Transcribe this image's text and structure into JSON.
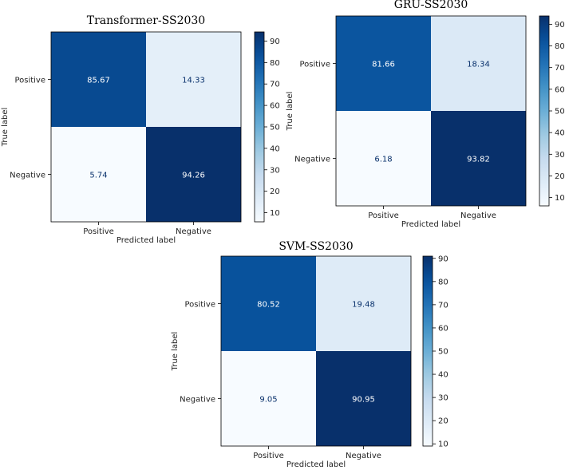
{
  "chart_data": [
    {
      "type": "heatmap",
      "title": "Transformer-SS2030",
      "row_labels": [
        "Positive",
        "Negative"
      ],
      "col_labels": [
        "Positive",
        "Negative"
      ],
      "values": [
        [
          85.67,
          14.33
        ],
        [
          5.74,
          94.26
        ]
      ],
      "xlabel": "Predicted label",
      "ylabel": "True label",
      "colorbar": {
        "range": [
          5.74,
          94.26
        ],
        "ticks": [
          10,
          20,
          30,
          40,
          50,
          60,
          70,
          80,
          90
        ]
      },
      "cmap": "Blues"
    },
    {
      "type": "heatmap",
      "title": "GRU-SS2030",
      "row_labels": [
        "Positive",
        "Negative"
      ],
      "col_labels": [
        "Positive",
        "Negative"
      ],
      "values": [
        [
          81.66,
          18.34
        ],
        [
          6.18,
          93.82
        ]
      ],
      "xlabel": "Predicted label",
      "ylabel": "True label",
      "colorbar": {
        "range": [
          6.18,
          93.82
        ],
        "ticks": [
          10,
          20,
          30,
          40,
          50,
          60,
          70,
          80,
          90
        ]
      },
      "cmap": "Blues"
    },
    {
      "type": "heatmap",
      "title": "SVM-SS2030",
      "row_labels": [
        "Positive",
        "Negative"
      ],
      "col_labels": [
        "Positive",
        "Negative"
      ],
      "values": [
        [
          80.52,
          19.48
        ],
        [
          9.05,
          90.95
        ]
      ],
      "xlabel": "Predicted label",
      "ylabel": "True label",
      "colorbar": {
        "range": [
          9.05,
          90.95
        ],
        "ticks": [
          10,
          20,
          30,
          40,
          50,
          60,
          70,
          80,
          90
        ]
      },
      "cmap": "Blues"
    }
  ]
}
